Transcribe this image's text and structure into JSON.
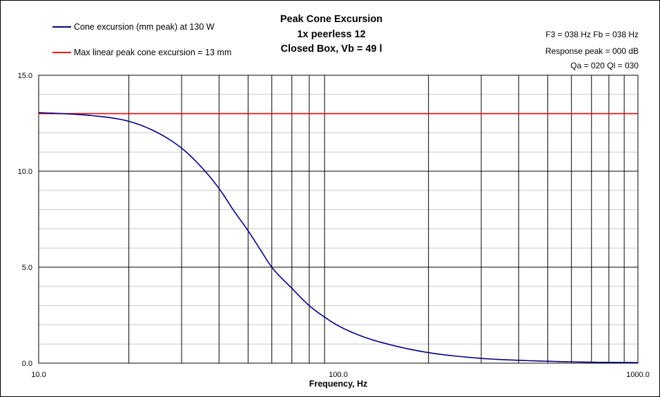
{
  "chart_data": {
    "type": "line",
    "title_lines": [
      "Peak Cone Excursion",
      "1x peerless 12",
      "Closed Box, Vb = 49 l"
    ],
    "info_lines": [
      "F3 = 038 Hz  Fb = 038 Hz",
      "Response peak = 000 dB",
      "Qa = 020  Ql = 030"
    ],
    "xlabel": "Frequency, Hz",
    "ylabel": "",
    "xscale": "log",
    "xlim": [
      10,
      1000
    ],
    "ylim": [
      0,
      15
    ],
    "x_tick_labels": [
      {
        "value": 10,
        "label": "10.0"
      },
      {
        "value": 100,
        "label": "100.0"
      },
      {
        "value": 1000,
        "label": "1000.0"
      }
    ],
    "y_tick_labels": [
      {
        "value": 0,
        "label": "0.0"
      },
      {
        "value": 5,
        "label": "5.0"
      },
      {
        "value": 10,
        "label": "10.0"
      },
      {
        "value": 15,
        "label": "15.0"
      }
    ],
    "grid": true,
    "legend_position": "top-left",
    "series": [
      {
        "name": "Cone excursion (mm peak) at 130 W",
        "color": "#000080",
        "x": [
          10,
          12,
          15,
          20,
          25,
          30,
          35,
          40,
          45,
          50,
          55,
          60,
          70,
          80,
          90,
          100,
          120,
          150,
          200,
          300,
          400,
          500,
          700,
          1000
        ],
        "y": [
          13.05,
          13.0,
          12.9,
          12.6,
          12.0,
          11.2,
          10.2,
          9.1,
          7.9,
          6.9,
          5.9,
          5.0,
          3.9,
          3.0,
          2.4,
          1.95,
          1.4,
          0.95,
          0.55,
          0.25,
          0.15,
          0.1,
          0.05,
          0.03
        ]
      },
      {
        "name": "Max linear peak cone excursion = 13 mm",
        "color": "#ff0000",
        "x": [
          10,
          1000
        ],
        "y": [
          13,
          13
        ]
      }
    ]
  }
}
